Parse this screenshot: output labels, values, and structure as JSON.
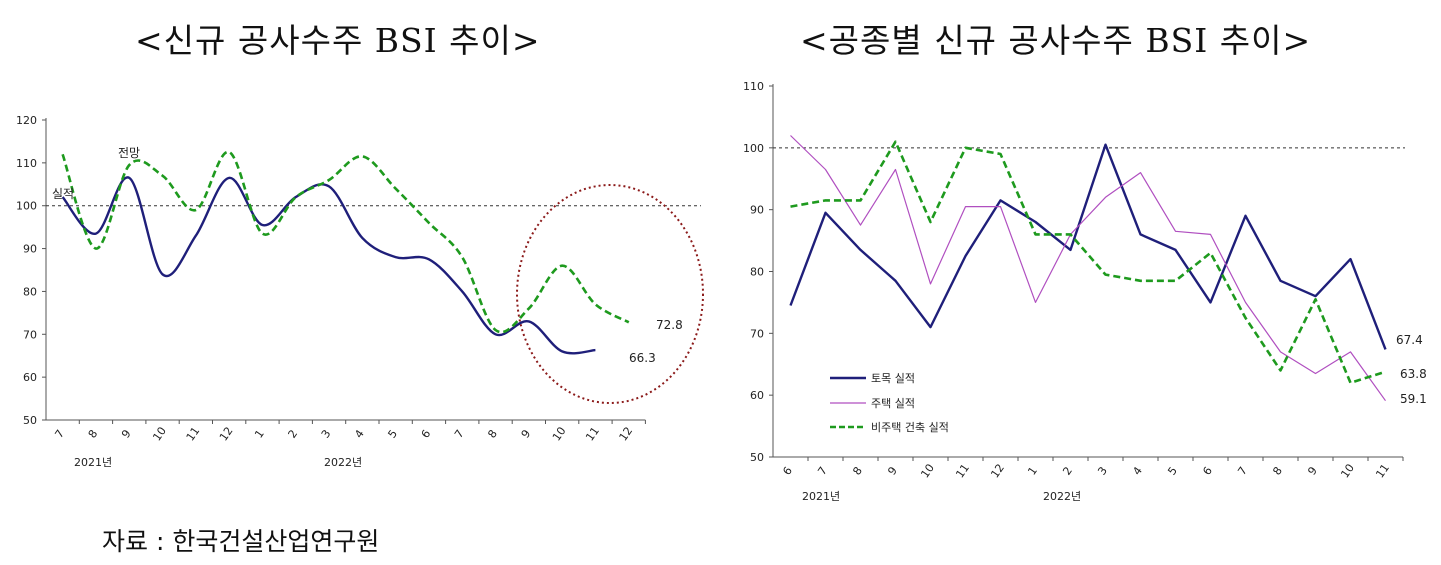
{
  "charts": [
    {
      "title": "<신규 공사수주 BSI 추이>"
    },
    {
      "title": "<공종별 신규 공사수주 BSI 추이>"
    }
  ],
  "source": "자료 : 한국건설산업연구원",
  "chart_data": [
    {
      "type": "line",
      "title": "<신규 공사수주 BSI 추이>",
      "categories": [
        "7",
        "8",
        "9",
        "10",
        "11",
        "12",
        "1",
        "2",
        "3",
        "4",
        "5",
        "6",
        "7",
        "8",
        "9",
        "10",
        "11",
        "12"
      ],
      "year_labels": [
        "2021년",
        "2022년"
      ],
      "ylim": [
        50,
        120
      ],
      "yticks": [
        50,
        60,
        70,
        80,
        90,
        100,
        110,
        120
      ],
      "reference_line": 100,
      "series": [
        {
          "name": "실적",
          "style": "solid",
          "color": "#1f1f7a",
          "values": [
            102,
            93.5,
            106.5,
            84,
            93,
            106.5,
            95.5,
            102,
            104.5,
            92.5,
            88,
            87.5,
            80,
            70,
            73,
            66,
            66.3,
            null
          ]
        },
        {
          "name": "전망",
          "style": "dashed",
          "color": "#1e9a1e",
          "values": [
            112,
            90,
            109.5,
            107,
            99,
            112.5,
            93.5,
            102,
            106,
            111.5,
            104,
            96,
            88,
            71,
            76,
            86,
            77,
            72.8
          ]
        }
      ],
      "annotations": [
        {
          "text": "66.3"
        },
        {
          "text": "72.8"
        }
      ]
    },
    {
      "type": "line",
      "title": "<공종별 신규 공사수주 BSI 추이>",
      "categories": [
        "6",
        "7",
        "8",
        "9",
        "10",
        "11",
        "12",
        "1",
        "2",
        "3",
        "4",
        "5",
        "6",
        "7",
        "8",
        "9",
        "10",
        "11"
      ],
      "year_labels": [
        "2021년",
        "2022년"
      ],
      "ylim": [
        50,
        110
      ],
      "yticks": [
        50,
        60,
        70,
        80,
        90,
        100,
        110
      ],
      "reference_line": 100,
      "series": [
        {
          "name": "토목 실적",
          "style": "solid",
          "color": "#1f1f7a",
          "values": [
            74.5,
            89.5,
            83.5,
            78.5,
            71,
            82.5,
            91.5,
            88,
            83.5,
            100.5,
            86,
            83.5,
            75,
            89,
            78.5,
            76,
            82,
            67.4
          ]
        },
        {
          "name": "주택 실적",
          "style": "thin",
          "color": "#b04fc0",
          "values": [
            102,
            96.5,
            87.5,
            96.5,
            78,
            90.5,
            90.5,
            75,
            86,
            92,
            96,
            86.5,
            86,
            75,
            67,
            63.5,
            67,
            59.1
          ]
        },
        {
          "name": "비주택 건축 실적",
          "style": "dashed",
          "color": "#1e9a1e",
          "values": [
            90.5,
            91.5,
            91.5,
            101,
            88,
            100,
            99,
            86,
            86,
            79.5,
            78.5,
            78.5,
            83,
            72.5,
            64,
            75.5,
            62,
            63.8
          ]
        }
      ],
      "annotations": [
        {
          "text": "67.4"
        },
        {
          "text": "63.8"
        },
        {
          "text": "59.1"
        }
      ]
    }
  ]
}
